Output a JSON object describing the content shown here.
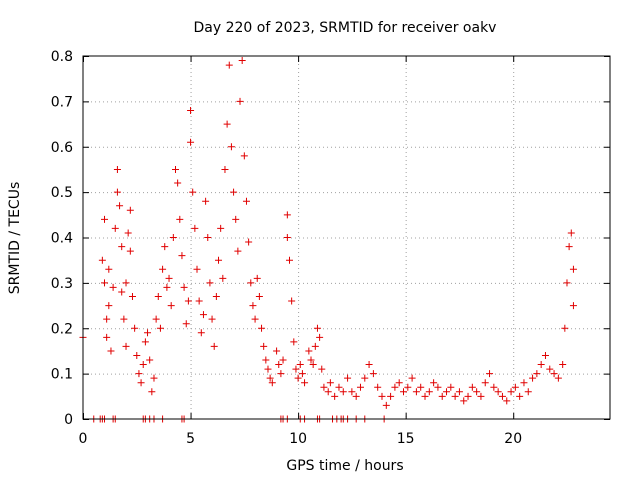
{
  "chart_data": {
    "type": "scatter",
    "title": "Day 220 of 2023, SRMTID for receiver oakv",
    "xlabel": "GPS time / hours",
    "ylabel": "SRMTID / TECUs",
    "xlim": [
      0,
      24.5
    ],
    "ylim": [
      0,
      0.8
    ],
    "xticks": [
      0,
      5,
      10,
      15,
      20
    ],
    "xtick_labels": [
      "0",
      "5",
      "10",
      "15",
      "20"
    ],
    "yticks": [
      0,
      0.1,
      0.2,
      0.3,
      0.4,
      0.5,
      0.6,
      0.7,
      0.8
    ],
    "ytick_labels": [
      "0",
      "0.1",
      "0.2",
      "0.3",
      "0.4",
      "0.5",
      "0.6",
      "0.7",
      "0.8"
    ],
    "grid": true,
    "marker": "+",
    "color": "#e00000",
    "series": [
      {
        "name": "SRMTID",
        "points": [
          [
            0.0,
            0.18
          ],
          [
            0.5,
            0.0
          ],
          [
            0.8,
            0.0
          ],
          [
            0.9,
            0.0
          ],
          [
            1.0,
            0.0
          ],
          [
            1.4,
            0.0
          ],
          [
            1.5,
            0.0
          ],
          [
            2.8,
            0.0
          ],
          [
            2.9,
            0.0
          ],
          [
            3.1,
            0.0
          ],
          [
            3.3,
            0.0
          ],
          [
            3.7,
            0.0
          ],
          [
            4.6,
            0.0
          ],
          [
            4.7,
            0.0
          ],
          [
            9.2,
            0.0
          ],
          [
            9.3,
            0.0
          ],
          [
            9.5,
            0.0
          ],
          [
            10.1,
            0.0
          ],
          [
            10.3,
            0.0
          ],
          [
            10.9,
            0.0
          ],
          [
            11.0,
            0.0
          ],
          [
            11.6,
            0.0
          ],
          [
            11.8,
            0.0
          ],
          [
            12.0,
            0.0
          ],
          [
            12.1,
            0.0
          ],
          [
            12.3,
            0.0
          ],
          [
            12.7,
            0.0
          ],
          [
            13.1,
            0.0
          ],
          [
            14.0,
            0.0
          ],
          [
            0.9,
            0.35
          ],
          [
            1.0,
            0.44
          ],
          [
            1.0,
            0.3
          ],
          [
            1.1,
            0.22
          ],
          [
            1.1,
            0.18
          ],
          [
            1.2,
            0.25
          ],
          [
            1.2,
            0.33
          ],
          [
            1.3,
            0.15
          ],
          [
            1.4,
            0.29
          ],
          [
            1.5,
            0.42
          ],
          [
            1.6,
            0.55
          ],
          [
            1.6,
            0.5
          ],
          [
            1.7,
            0.47
          ],
          [
            1.8,
            0.38
          ],
          [
            1.8,
            0.28
          ],
          [
            1.9,
            0.22
          ],
          [
            2.0,
            0.3
          ],
          [
            2.0,
            0.16
          ],
          [
            2.1,
            0.41
          ],
          [
            2.2,
            0.46
          ],
          [
            2.2,
            0.37
          ],
          [
            2.3,
            0.27
          ],
          [
            2.4,
            0.2
          ],
          [
            2.5,
            0.14
          ],
          [
            2.6,
            0.1
          ],
          [
            2.7,
            0.08
          ],
          [
            2.8,
            0.12
          ],
          [
            2.9,
            0.17
          ],
          [
            3.0,
            0.19
          ],
          [
            3.1,
            0.13
          ],
          [
            3.2,
            0.06
          ],
          [
            3.3,
            0.09
          ],
          [
            3.4,
            0.22
          ],
          [
            3.5,
            0.27
          ],
          [
            3.6,
            0.2
          ],
          [
            3.7,
            0.33
          ],
          [
            3.8,
            0.38
          ],
          [
            3.9,
            0.29
          ],
          [
            4.0,
            0.31
          ],
          [
            4.1,
            0.25
          ],
          [
            4.2,
            0.4
          ],
          [
            4.3,
            0.55
          ],
          [
            4.4,
            0.52
          ],
          [
            4.5,
            0.44
          ],
          [
            4.6,
            0.36
          ],
          [
            4.7,
            0.29
          ],
          [
            4.8,
            0.21
          ],
          [
            4.9,
            0.26
          ],
          [
            5.0,
            0.61
          ],
          [
            5.0,
            0.68
          ],
          [
            5.1,
            0.5
          ],
          [
            5.2,
            0.42
          ],
          [
            5.3,
            0.33
          ],
          [
            5.4,
            0.26
          ],
          [
            5.5,
            0.19
          ],
          [
            5.6,
            0.23
          ],
          [
            5.7,
            0.48
          ],
          [
            5.8,
            0.4
          ],
          [
            5.9,
            0.3
          ],
          [
            6.0,
            0.22
          ],
          [
            6.1,
            0.16
          ],
          [
            6.2,
            0.27
          ],
          [
            6.3,
            0.35
          ],
          [
            6.4,
            0.42
          ],
          [
            6.5,
            0.31
          ],
          [
            6.6,
            0.55
          ],
          [
            6.7,
            0.65
          ],
          [
            6.8,
            0.78
          ],
          [
            6.9,
            0.6
          ],
          [
            7.0,
            0.5
          ],
          [
            7.1,
            0.44
          ],
          [
            7.2,
            0.37
          ],
          [
            7.3,
            0.7
          ],
          [
            7.4,
            0.79
          ],
          [
            7.5,
            0.58
          ],
          [
            7.6,
            0.48
          ],
          [
            7.7,
            0.39
          ],
          [
            7.8,
            0.3
          ],
          [
            7.9,
            0.25
          ],
          [
            8.0,
            0.22
          ],
          [
            8.1,
            0.31
          ],
          [
            8.2,
            0.27
          ],
          [
            8.3,
            0.2
          ],
          [
            8.4,
            0.16
          ],
          [
            8.5,
            0.13
          ],
          [
            8.6,
            0.11
          ],
          [
            8.7,
            0.09
          ],
          [
            8.8,
            0.08
          ],
          [
            9.0,
            0.15
          ],
          [
            9.1,
            0.12
          ],
          [
            9.2,
            0.1
          ],
          [
            9.3,
            0.13
          ],
          [
            9.5,
            0.45
          ],
          [
            9.5,
            0.4
          ],
          [
            9.6,
            0.35
          ],
          [
            9.7,
            0.26
          ],
          [
            9.8,
            0.17
          ],
          [
            9.9,
            0.11
          ],
          [
            10.0,
            0.09
          ],
          [
            10.1,
            0.12
          ],
          [
            10.2,
            0.1
          ],
          [
            10.3,
            0.08
          ],
          [
            10.5,
            0.15
          ],
          [
            10.6,
            0.13
          ],
          [
            10.7,
            0.12
          ],
          [
            10.8,
            0.16
          ],
          [
            10.9,
            0.2
          ],
          [
            11.0,
            0.18
          ],
          [
            11.1,
            0.11
          ],
          [
            11.2,
            0.07
          ],
          [
            11.4,
            0.06
          ],
          [
            11.5,
            0.08
          ],
          [
            11.7,
            0.05
          ],
          [
            11.9,
            0.07
          ],
          [
            12.1,
            0.06
          ],
          [
            12.3,
            0.09
          ],
          [
            12.5,
            0.06
          ],
          [
            12.7,
            0.05
          ],
          [
            12.9,
            0.07
          ],
          [
            13.1,
            0.09
          ],
          [
            13.3,
            0.12
          ],
          [
            13.5,
            0.1
          ],
          [
            13.7,
            0.07
          ],
          [
            13.9,
            0.05
          ],
          [
            14.1,
            0.03
          ],
          [
            14.3,
            0.05
          ],
          [
            14.5,
            0.07
          ],
          [
            14.7,
            0.08
          ],
          [
            14.9,
            0.06
          ],
          [
            15.1,
            0.07
          ],
          [
            15.3,
            0.09
          ],
          [
            15.5,
            0.06
          ],
          [
            15.7,
            0.07
          ],
          [
            15.9,
            0.05
          ],
          [
            16.1,
            0.06
          ],
          [
            16.3,
            0.08
          ],
          [
            16.5,
            0.07
          ],
          [
            16.7,
            0.05
          ],
          [
            16.9,
            0.06
          ],
          [
            17.1,
            0.07
          ],
          [
            17.3,
            0.05
          ],
          [
            17.5,
            0.06
          ],
          [
            17.7,
            0.04
          ],
          [
            17.9,
            0.05
          ],
          [
            18.1,
            0.07
          ],
          [
            18.3,
            0.06
          ],
          [
            18.5,
            0.05
          ],
          [
            18.7,
            0.08
          ],
          [
            18.9,
            0.1
          ],
          [
            19.1,
            0.07
          ],
          [
            19.3,
            0.06
          ],
          [
            19.5,
            0.05
          ],
          [
            19.7,
            0.04
          ],
          [
            19.9,
            0.06
          ],
          [
            20.1,
            0.07
          ],
          [
            20.3,
            0.05
          ],
          [
            20.5,
            0.08
          ],
          [
            20.7,
            0.06
          ],
          [
            20.9,
            0.09
          ],
          [
            21.1,
            0.1
          ],
          [
            21.3,
            0.12
          ],
          [
            21.5,
            0.14
          ],
          [
            21.7,
            0.11
          ],
          [
            21.9,
            0.1
          ],
          [
            22.1,
            0.09
          ],
          [
            22.3,
            0.12
          ],
          [
            22.4,
            0.2
          ],
          [
            22.5,
            0.3
          ],
          [
            22.6,
            0.38
          ],
          [
            22.7,
            0.41
          ],
          [
            22.8,
            0.33
          ],
          [
            22.8,
            0.25
          ]
        ]
      }
    ]
  }
}
